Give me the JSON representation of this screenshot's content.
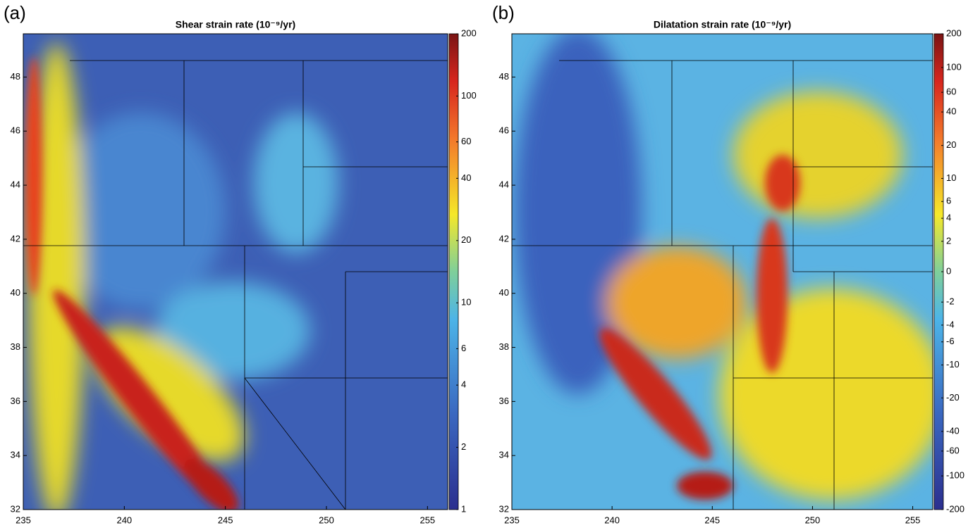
{
  "chart_data": [
    {
      "type": "heatmap",
      "panel_label": "(a)",
      "title": "Shear strain rate (10⁻⁹/yr)",
      "xlim": [
        235,
        256
      ],
      "ylim": [
        32,
        49.6
      ],
      "xticks": [
        235,
        240,
        245,
        250,
        255
      ],
      "yticks": [
        32,
        34,
        36,
        38,
        40,
        42,
        44,
        46,
        48
      ],
      "colorbar": {
        "scale": "log",
        "lim": [
          1,
          200
        ],
        "ticks": [
          1,
          2,
          4,
          6,
          10,
          20,
          40,
          60,
          100,
          200
        ]
      }
    },
    {
      "type": "heatmap",
      "panel_label": "(b)",
      "title": "Dilatation strain rate (10⁻⁹/yr)",
      "xlim": [
        235,
        256
      ],
      "ylim": [
        32,
        49.6
      ],
      "xticks": [
        235,
        240,
        245,
        250,
        255
      ],
      "yticks": [
        32,
        34,
        36,
        38,
        40,
        42,
        44,
        46,
        48
      ],
      "colorbar": {
        "scale": "asinh",
        "lim": [
          -200,
          200
        ],
        "ticks": [
          -200,
          -100,
          -60,
          -40,
          -20,
          -10,
          -6,
          -4,
          -2,
          0,
          2,
          4,
          6,
          10,
          20,
          40,
          60,
          100,
          200
        ]
      }
    }
  ]
}
